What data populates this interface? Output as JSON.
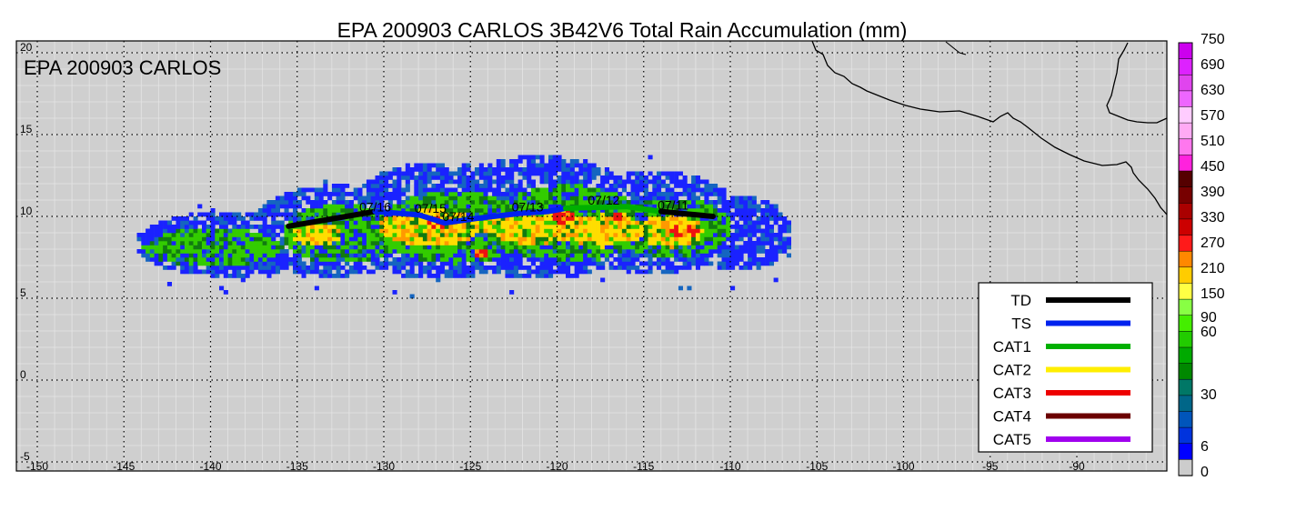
{
  "title": "EPA 200903 CARLOS 3B42V6 Total Rain Accumulation (mm)",
  "inset_label": "EPA 200903 CARLOS",
  "axes": {
    "lon_ticks": [
      "-150",
      "-145",
      "-140",
      "-135",
      "-130",
      "-125",
      "-120",
      "-115",
      "-110",
      "-105",
      "-100",
      "-95",
      "-90"
    ],
    "lat_ticks": [
      "20",
      "15",
      "10",
      "5",
      "0",
      "-5"
    ]
  },
  "track": {
    "segments": [
      {
        "category": "TD",
        "points": [
          [
            -135.5,
            9.4
          ],
          [
            -130.5,
            10.3
          ]
        ]
      },
      {
        "category": "TS",
        "points": [
          [
            -130.5,
            10.3
          ],
          [
            -128,
            10.1
          ],
          [
            -126.5,
            9.6
          ],
          [
            -124.5,
            9.9
          ],
          [
            -122,
            10.2
          ],
          [
            -120.5,
            10.3
          ],
          [
            -119.5,
            10.5
          ]
        ]
      },
      {
        "category": "CAT1",
        "points": [
          [
            -119.5,
            10.5
          ],
          [
            -116,
            10.6
          ],
          [
            -114,
            10.3
          ]
        ]
      },
      {
        "category": "TD",
        "points": [
          [
            -114,
            10.3
          ],
          [
            -111,
            10.0
          ]
        ]
      }
    ],
    "date_labels": [
      {
        "text": "07/16",
        "lon": -130.5,
        "lat": 10.2
      },
      {
        "text": "07/15",
        "lon": -127.3,
        "lat": 10.1
      },
      {
        "text": "07/14",
        "lon": -125.7,
        "lat": 9.6
      },
      {
        "text": "07/13",
        "lon": -121.7,
        "lat": 10.2
      },
      {
        "text": "07/12",
        "lon": -117.3,
        "lat": 10.6
      },
      {
        "text": "07/11",
        "lon": -113.3,
        "lat": 10.3
      }
    ]
  },
  "legend": {
    "items": [
      {
        "label": "TD",
        "color": "#000000"
      },
      {
        "label": "TS",
        "color": "#0022ee"
      },
      {
        "label": "CAT1",
        "color": "#00b000"
      },
      {
        "label": "CAT2",
        "color": "#ffee00"
      },
      {
        "label": "CAT3",
        "color": "#ee0000"
      },
      {
        "label": "CAT4",
        "color": "#6b0000"
      },
      {
        "label": "CAT5",
        "color": "#a000ee"
      }
    ]
  },
  "colorbar": {
    "labels": [
      "750",
      "690",
      "630",
      "570",
      "510",
      "450",
      "390",
      "330",
      "270",
      "210",
      "150",
      "90",
      "60",
      "30",
      "6",
      "0"
    ],
    "colors": [
      "#cc00ee",
      "#dd22ff",
      "#e044ee",
      "#ee66ff",
      "#ffccff",
      "#ffaaf4",
      "#ff77ee",
      "#ff22dd",
      "#550000",
      "#770000",
      "#aa0000",
      "#cc0000",
      "#ff1a1a",
      "#ff8800",
      "#ffcc00",
      "#ffff44",
      "#88ff44",
      "#44ee00",
      "#22cc00",
      "#00aa00",
      "#008800",
      "#007766",
      "#006688",
      "#0055bb",
      "#0033dd",
      "#0000ff",
      "#cccccc"
    ]
  },
  "rain_swath": {
    "blobs": [
      {
        "lon": -139,
        "lat": 8.2,
        "rlon": 5.5,
        "rlat": 2.0,
        "level": 1
      },
      {
        "lon": -133,
        "lat": 9.0,
        "rlon": 5.0,
        "rlat": 2.8,
        "level": 1
      },
      {
        "lon": -127,
        "lat": 9.6,
        "rlon": 5.5,
        "rlat": 3.6,
        "level": 1
      },
      {
        "lon": -121,
        "lat": 9.8,
        "rlon": 6.0,
        "rlat": 3.8,
        "level": 1
      },
      {
        "lon": -114.5,
        "lat": 9.5,
        "rlon": 5.0,
        "rlat": 3.2,
        "level": 1
      },
      {
        "lon": -109.5,
        "lat": 8.8,
        "rlon": 3.0,
        "rlat": 2.3,
        "level": 1
      },
      {
        "lon": -140,
        "lat": 8.0,
        "rlon": 4.0,
        "rlat": 1.2,
        "level": 2
      },
      {
        "lon": -132.5,
        "lat": 8.8,
        "rlon": 3.5,
        "rlat": 1.8,
        "level": 2
      },
      {
        "lon": -126,
        "lat": 9.2,
        "rlon": 4.5,
        "rlat": 2.2,
        "level": 2
      },
      {
        "lon": -119.5,
        "lat": 9.4,
        "rlon": 4.5,
        "rlat": 2.4,
        "level": 2
      },
      {
        "lon": -113.5,
        "lat": 9.2,
        "rlon": 3.5,
        "rlat": 1.8,
        "level": 2
      },
      {
        "lon": -127.5,
        "lat": 9.2,
        "rlon": 3.0,
        "rlat": 1.1,
        "level": 3
      },
      {
        "lon": -121.5,
        "lat": 9.2,
        "rlon": 3.0,
        "rlat": 1.0,
        "level": 3
      },
      {
        "lon": -117.5,
        "lat": 9.0,
        "rlon": 2.5,
        "rlat": 1.0,
        "level": 3
      },
      {
        "lon": -113.5,
        "lat": 9.0,
        "rlon": 2.0,
        "rlat": 1.0,
        "level": 3
      },
      {
        "lon": -134,
        "lat": 8.8,
        "rlon": 1.5,
        "rlat": 0.7,
        "level": 3
      },
      {
        "lon": -127,
        "lat": 9.5,
        "rlon": 0.6,
        "rlat": 0.4,
        "level": 4
      },
      {
        "lon": -119.8,
        "lat": 9.9,
        "rlon": 0.6,
        "rlat": 0.5,
        "level": 4
      },
      {
        "lon": -112.8,
        "lat": 9.0,
        "rlon": 0.8,
        "rlat": 0.5,
        "level": 4
      },
      {
        "lon": -124.5,
        "lat": 7.6,
        "rlon": 0.3,
        "rlat": 0.3,
        "level": 4
      },
      {
        "lon": -116.5,
        "lat": 9.9,
        "rlon": 0.4,
        "rlat": 0.3,
        "level": 4
      }
    ]
  }
}
